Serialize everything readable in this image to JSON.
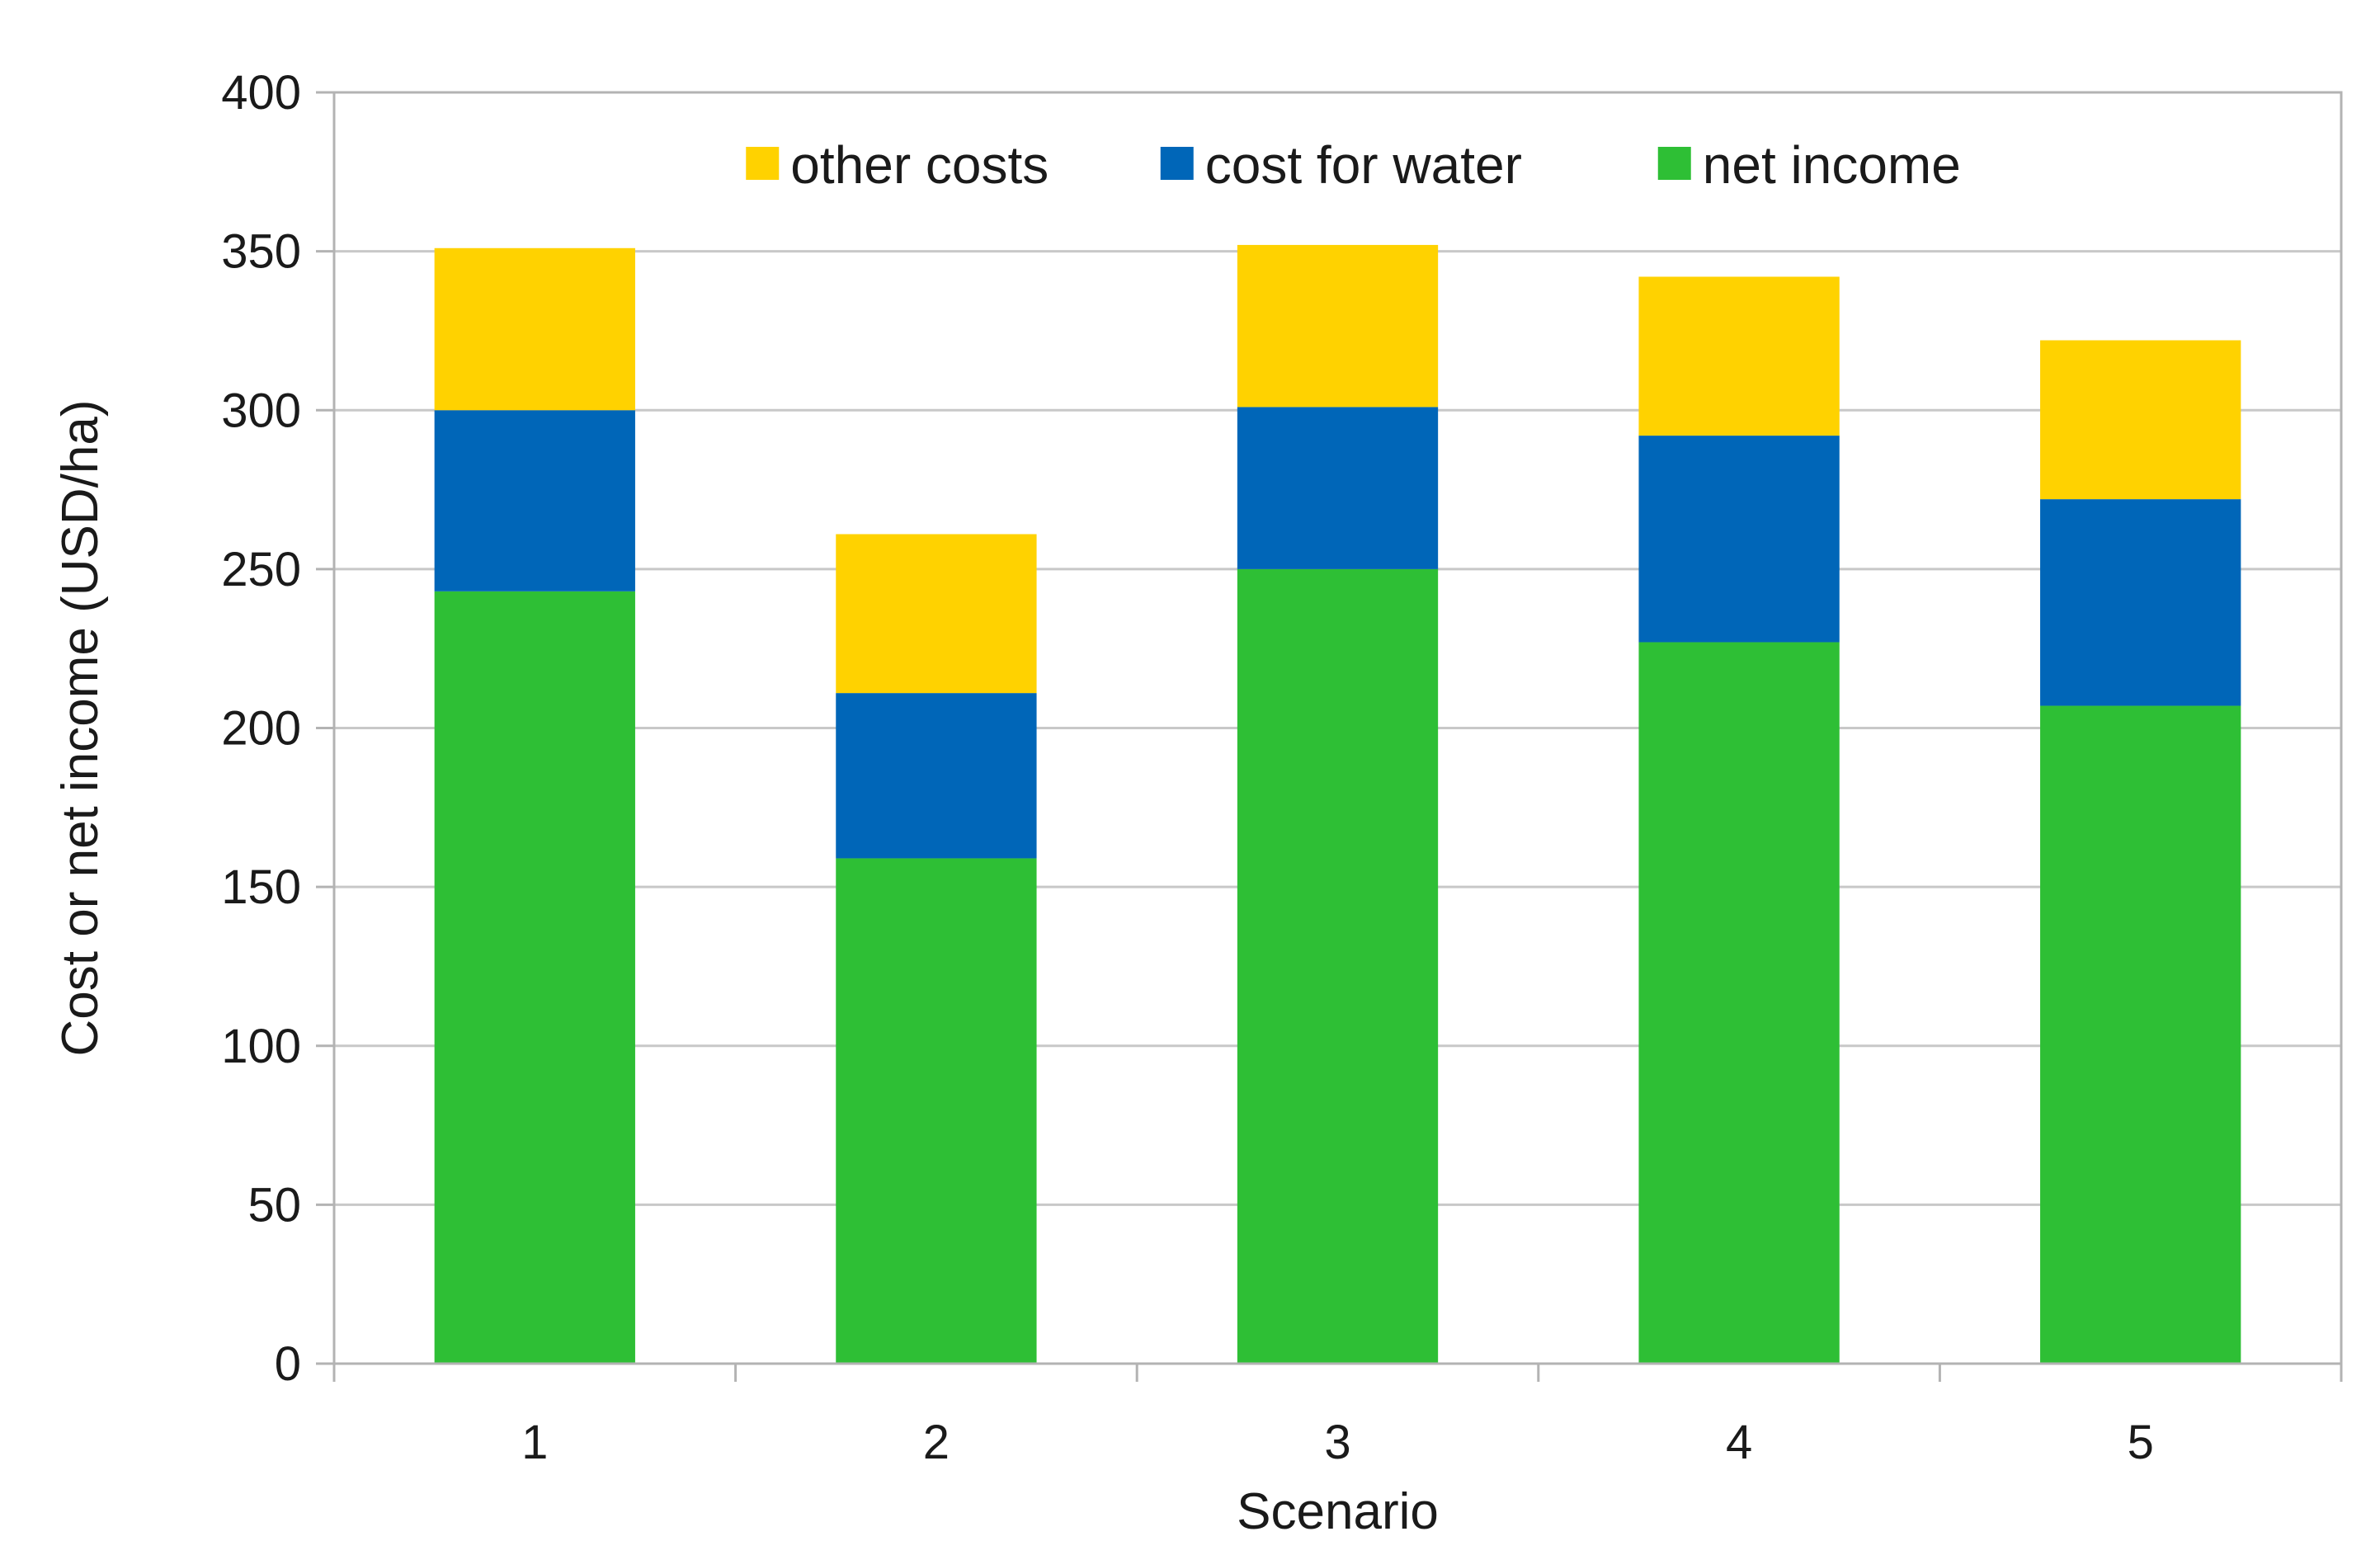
{
  "chart_data": {
    "type": "bar",
    "stacked": true,
    "title": "",
    "xlabel": "Scenario",
    "ylabel": "Cost or net income (USD/ha)",
    "categories": [
      "1",
      "2",
      "3",
      "4",
      "5"
    ],
    "ylim": [
      0,
      400
    ],
    "yticks": [
      0,
      50,
      100,
      150,
      200,
      250,
      300,
      350,
      400
    ],
    "grid": true,
    "legend_position": "top",
    "series": [
      {
        "name": "net income",
        "color": "#2ebf35",
        "values": [
          243,
          159,
          250,
          227,
          207
        ]
      },
      {
        "name": "cost for water",
        "color": "#0066b8",
        "values": [
          57,
          52,
          51,
          65,
          65
        ]
      },
      {
        "name": "other costs",
        "color": "#ffd200",
        "values": [
          51,
          50,
          51,
          50,
          50
        ]
      }
    ],
    "legend_order": [
      "other costs",
      "cost for water",
      "net income"
    ]
  }
}
